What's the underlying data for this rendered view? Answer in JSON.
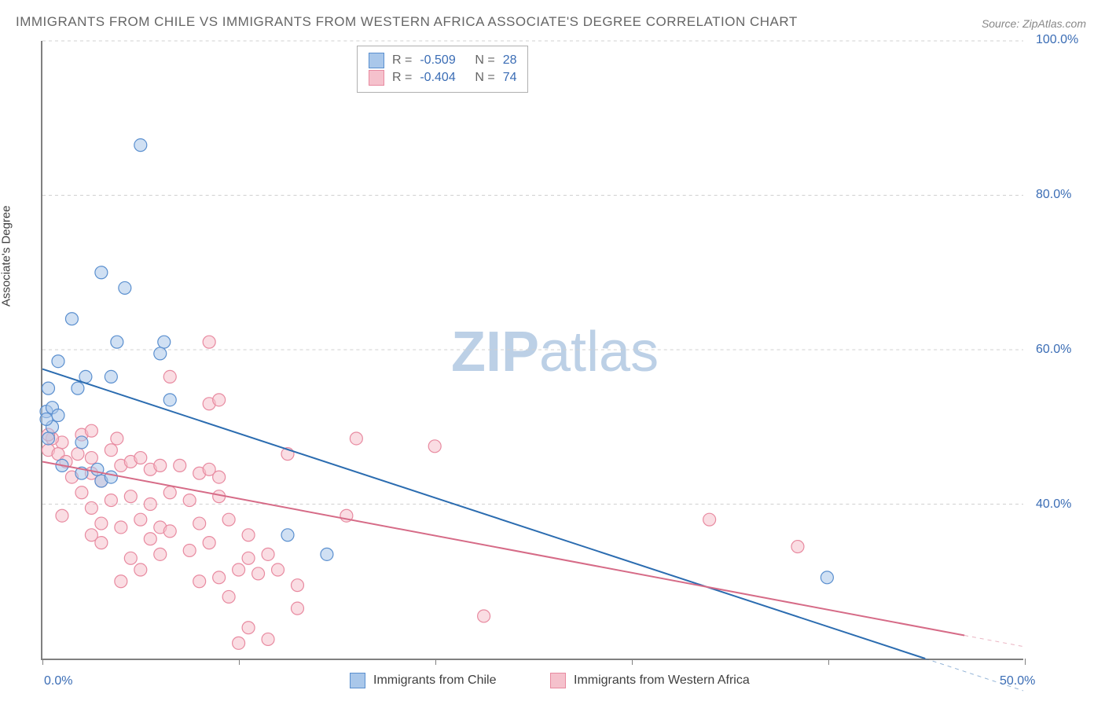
{
  "title": "IMMIGRANTS FROM CHILE VS IMMIGRANTS FROM WESTERN AFRICA ASSOCIATE'S DEGREE CORRELATION CHART",
  "source": "Source: ZipAtlas.com",
  "y_axis_label": "Associate's Degree",
  "watermark": {
    "zip": "ZIP",
    "atlas": "atlas",
    "color": "#bcd0e6",
    "fontsize": 72
  },
  "chart": {
    "type": "scatter",
    "background_color": "#ffffff",
    "grid_color": "#d0d0d0",
    "axis_color": "#808080",
    "xlim": [
      0,
      50
    ],
    "ylim": [
      20,
      100
    ],
    "xticks": [
      0,
      10,
      20,
      30,
      40,
      50
    ],
    "xtick_labels": [
      "0.0%",
      "",
      "",
      "",
      "",
      "50.0%"
    ],
    "yticks": [
      20,
      40,
      60,
      80,
      100
    ],
    "ytick_labels": [
      "",
      "40.0%",
      "60.0%",
      "80.0%",
      "100.0%"
    ],
    "ytick_label_color": "#3b6db5",
    "xtick_label_color": "#3b6db5",
    "tick_fontsize": 16,
    "marker_radius": 8,
    "marker_stroke_width": 1.2,
    "line_width": 2,
    "series": [
      {
        "name": "Immigrants from Chile",
        "fill": "#a9c7ea",
        "stroke": "#5a8fcf",
        "fill_opacity": 0.55,
        "line_color": "#2b6cb0",
        "R": "-0.509",
        "N": "28",
        "regression": {
          "x1": 0,
          "y1": 57.5,
          "x2": 45,
          "y2": 20
        },
        "points": [
          [
            5.0,
            86.5
          ],
          [
            3.0,
            70.0
          ],
          [
            4.2,
            68.0
          ],
          [
            1.5,
            64.0
          ],
          [
            3.8,
            61.0
          ],
          [
            6.2,
            61.0
          ],
          [
            6.0,
            59.5
          ],
          [
            0.8,
            58.5
          ],
          [
            2.2,
            56.5
          ],
          [
            3.5,
            56.5
          ],
          [
            0.3,
            55.0
          ],
          [
            1.8,
            55.0
          ],
          [
            6.5,
            53.5
          ],
          [
            0.2,
            52.0
          ],
          [
            0.5,
            52.5
          ],
          [
            0.5,
            50.0
          ],
          [
            0.2,
            51.0
          ],
          [
            0.3,
            48.5
          ],
          [
            2.0,
            44.0
          ],
          [
            3.0,
            43.0
          ],
          [
            1.0,
            45.0
          ],
          [
            2.0,
            48.0
          ],
          [
            12.5,
            36.0
          ],
          [
            14.5,
            33.5
          ],
          [
            40.0,
            30.5
          ],
          [
            3.5,
            43.5
          ],
          [
            2.8,
            44.5
          ],
          [
            0.8,
            51.5
          ]
        ]
      },
      {
        "name": "Immigrants from Western Africa",
        "fill": "#f5c1cc",
        "stroke": "#e88aa0",
        "fill_opacity": 0.55,
        "line_color": "#d66b87",
        "R": "-0.404",
        "N": "74",
        "regression": {
          "x1": 0,
          "y1": 45.5,
          "x2": 47,
          "y2": 23
        },
        "points": [
          [
            8.5,
            61.0
          ],
          [
            6.5,
            56.5
          ],
          [
            8.5,
            53.0
          ],
          [
            9.0,
            53.5
          ],
          [
            16.0,
            48.5
          ],
          [
            20.0,
            47.5
          ],
          [
            12.5,
            46.5
          ],
          [
            2.0,
            49.0
          ],
          [
            2.5,
            49.5
          ],
          [
            1.0,
            48.0
          ],
          [
            0.5,
            48.5
          ],
          [
            0.3,
            49.0
          ],
          [
            1.8,
            46.5
          ],
          [
            2.5,
            46.0
          ],
          [
            3.5,
            47.0
          ],
          [
            4.0,
            45.0
          ],
          [
            4.5,
            45.5
          ],
          [
            5.0,
            46.0
          ],
          [
            5.5,
            44.5
          ],
          [
            6.0,
            45.0
          ],
          [
            7.0,
            45.0
          ],
          [
            8.0,
            44.0
          ],
          [
            8.5,
            44.5
          ],
          [
            9.0,
            43.5
          ],
          [
            3.0,
            43.0
          ],
          [
            2.5,
            44.0
          ],
          [
            1.5,
            43.5
          ],
          [
            2.0,
            41.5
          ],
          [
            3.5,
            40.5
          ],
          [
            2.5,
            39.5
          ],
          [
            4.5,
            41.0
          ],
          [
            5.5,
            40.0
          ],
          [
            6.5,
            41.5
          ],
          [
            7.5,
            40.5
          ],
          [
            5.0,
            38.0
          ],
          [
            3.0,
            37.5
          ],
          [
            4.0,
            37.0
          ],
          [
            6.0,
            37.0
          ],
          [
            1.0,
            38.5
          ],
          [
            2.5,
            36.0
          ],
          [
            5.5,
            35.5
          ],
          [
            6.5,
            36.5
          ],
          [
            8.0,
            37.5
          ],
          [
            9.5,
            38.0
          ],
          [
            8.5,
            35.0
          ],
          [
            7.5,
            34.0
          ],
          [
            6.0,
            33.5
          ],
          [
            4.5,
            33.0
          ],
          [
            5.0,
            31.5
          ],
          [
            10.5,
            33.0
          ],
          [
            11.5,
            33.5
          ],
          [
            10.0,
            31.5
          ],
          [
            11.0,
            31.0
          ],
          [
            12.0,
            31.5
          ],
          [
            8.0,
            30.0
          ],
          [
            9.0,
            30.5
          ],
          [
            13.0,
            29.5
          ],
          [
            4.0,
            30.0
          ],
          [
            3.0,
            35.0
          ],
          [
            10.5,
            36.0
          ],
          [
            9.0,
            41.0
          ],
          [
            15.5,
            38.5
          ],
          [
            22.5,
            25.5
          ],
          [
            13.0,
            26.5
          ],
          [
            9.5,
            28.0
          ],
          [
            10.5,
            24.0
          ],
          [
            11.5,
            22.5
          ],
          [
            10.0,
            22.0
          ],
          [
            34.0,
            38.0
          ],
          [
            38.5,
            34.5
          ],
          [
            0.3,
            47.0
          ],
          [
            0.8,
            46.5
          ],
          [
            1.2,
            45.5
          ],
          [
            3.8,
            48.5
          ]
        ]
      }
    ]
  },
  "legend_top": {
    "R_label": "R =",
    "N_label": "N =",
    "text_color": "#666666",
    "value_color": "#3b6db5"
  },
  "legend_bottom": {
    "text_color": "#404040"
  }
}
